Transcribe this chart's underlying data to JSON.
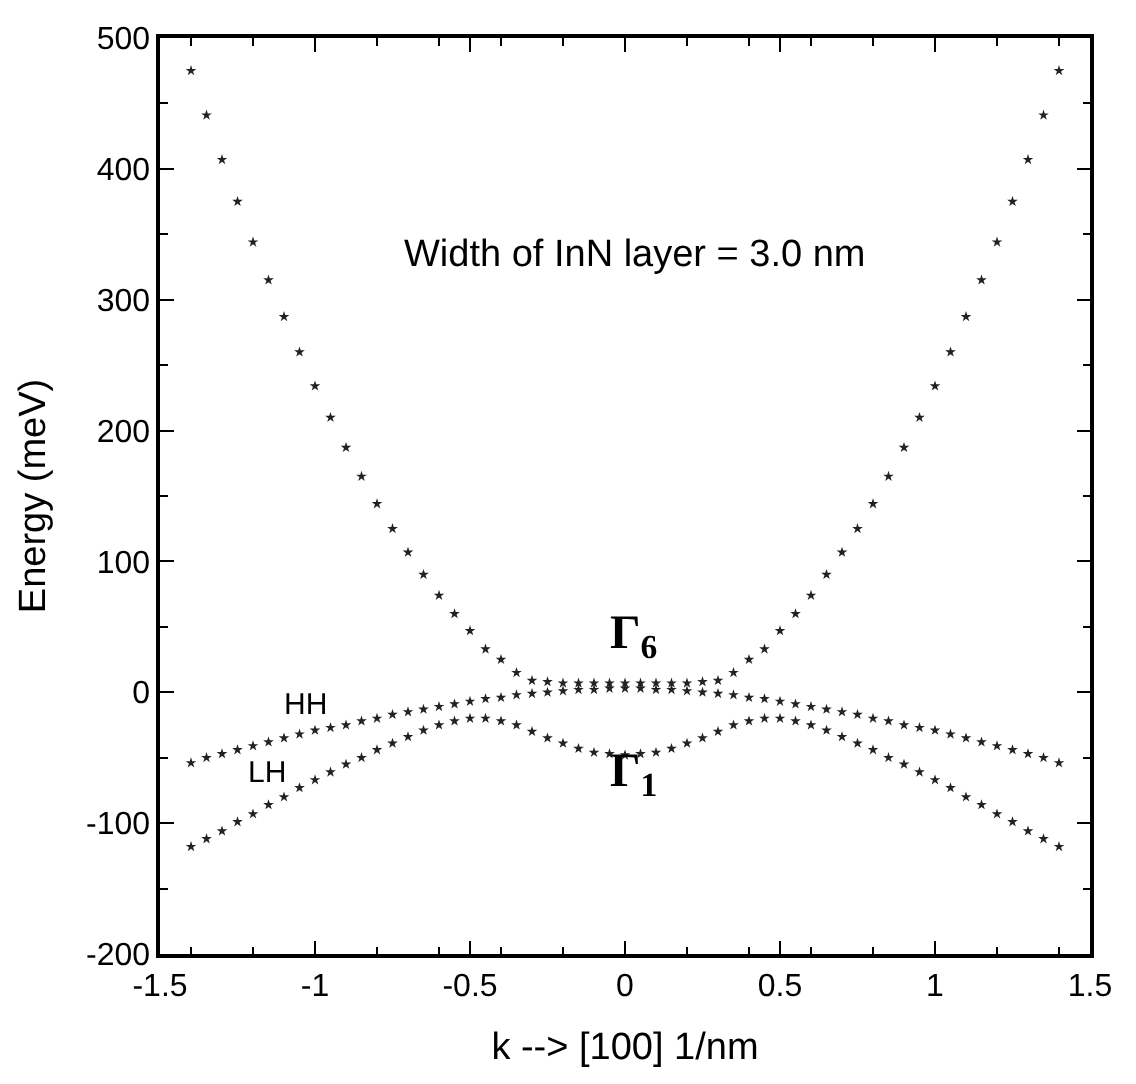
{
  "chart_data": {
    "type": "scatter",
    "xlabel": "k --> [100] 1/nm",
    "ylabel": "Energy (meV)",
    "x": [
      -1.4,
      -1.35,
      -1.3,
      -1.25,
      -1.2,
      -1.15,
      -1.1,
      -1.05,
      -1.0,
      -0.95,
      -0.9,
      -0.85,
      -0.8,
      -0.75,
      -0.7,
      -0.65,
      -0.6,
      -0.55,
      -0.5,
      -0.45,
      -0.4,
      -0.35,
      -0.3,
      -0.25,
      -0.2,
      -0.15,
      -0.1,
      -0.05,
      0,
      0.05,
      0.1,
      0.15,
      0.2,
      0.25,
      0.3,
      0.35,
      0.4,
      0.45,
      0.5,
      0.55,
      0.6,
      0.65,
      0.7,
      0.75,
      0.8,
      0.85,
      0.9,
      0.95,
      1.0,
      1.05,
      1.1,
      1.15,
      1.2,
      1.25,
      1.3,
      1.35,
      1.4
    ],
    "series": [
      {
        "color": "#222222",
        "values": [
          475,
          441,
          407,
          375,
          344,
          315,
          287,
          260,
          234,
          210,
          187,
          165,
          144,
          125,
          107,
          90,
          74,
          60,
          47,
          33,
          25,
          15,
          9,
          8,
          7,
          7,
          7,
          7,
          7,
          7,
          7,
          7,
          7,
          8,
          9,
          15,
          25,
          33,
          47,
          60,
          74,
          90,
          107,
          125,
          144,
          165,
          187,
          210,
          234,
          260,
          287,
          315,
          344,
          375,
          407,
          441,
          475
        ]
      },
      {
        "color": "#222222",
        "values": [
          -54,
          -50,
          -47,
          -44,
          -41,
          -38,
          -35,
          -32,
          -29,
          -27,
          -25,
          -22,
          -20,
          -17,
          -15,
          -13,
          -11,
          -9,
          -7,
          -5,
          -4,
          -2,
          -1,
          0,
          1,
          2,
          2,
          3,
          3,
          3,
          2,
          2,
          1,
          0,
          -1,
          -2,
          -4,
          -5,
          -7,
          -9,
          -11,
          -13,
          -15,
          -17,
          -20,
          -22,
          -25,
          -27,
          -29,
          -32,
          -35,
          -38,
          -41,
          -44,
          -47,
          -50,
          -54
        ]
      },
      {
        "color": "#222222",
        "values": [
          -118,
          -112,
          -106,
          -99,
          -93,
          -86,
          -80,
          -73,
          -67,
          -61,
          -55,
          -50,
          -44,
          -39,
          -34,
          -29,
          -25,
          -22,
          -20,
          -20,
          -22,
          -25,
          -30,
          -35,
          -39,
          -43,
          -46,
          -47,
          -48,
          -47,
          -46,
          -43,
          -39,
          -35,
          -30,
          -25,
          -22,
          -20,
          -20,
          -22,
          -25,
          -29,
          -34,
          -39,
          -44,
          -50,
          -55,
          -61,
          -67,
          -73,
          -80,
          -86,
          -93,
          -99,
          -106,
          -112,
          -118
        ]
      }
    ],
    "xlim": [
      -1.5,
      1.5
    ],
    "xticks": [
      -1.5,
      -1,
      -0.5,
      0,
      0.5,
      1,
      1.5
    ],
    "ylim": [
      -200,
      500
    ],
    "yticks": [
      -200,
      -100,
      0,
      100,
      200,
      300,
      400,
      500
    ],
    "marker": "star",
    "annotations": [
      "Width of InN layer = 3.0 nm",
      "Γ$_{6}$",
      "Γ$_{1}$",
      "HH",
      "LH"
    ]
  }
}
